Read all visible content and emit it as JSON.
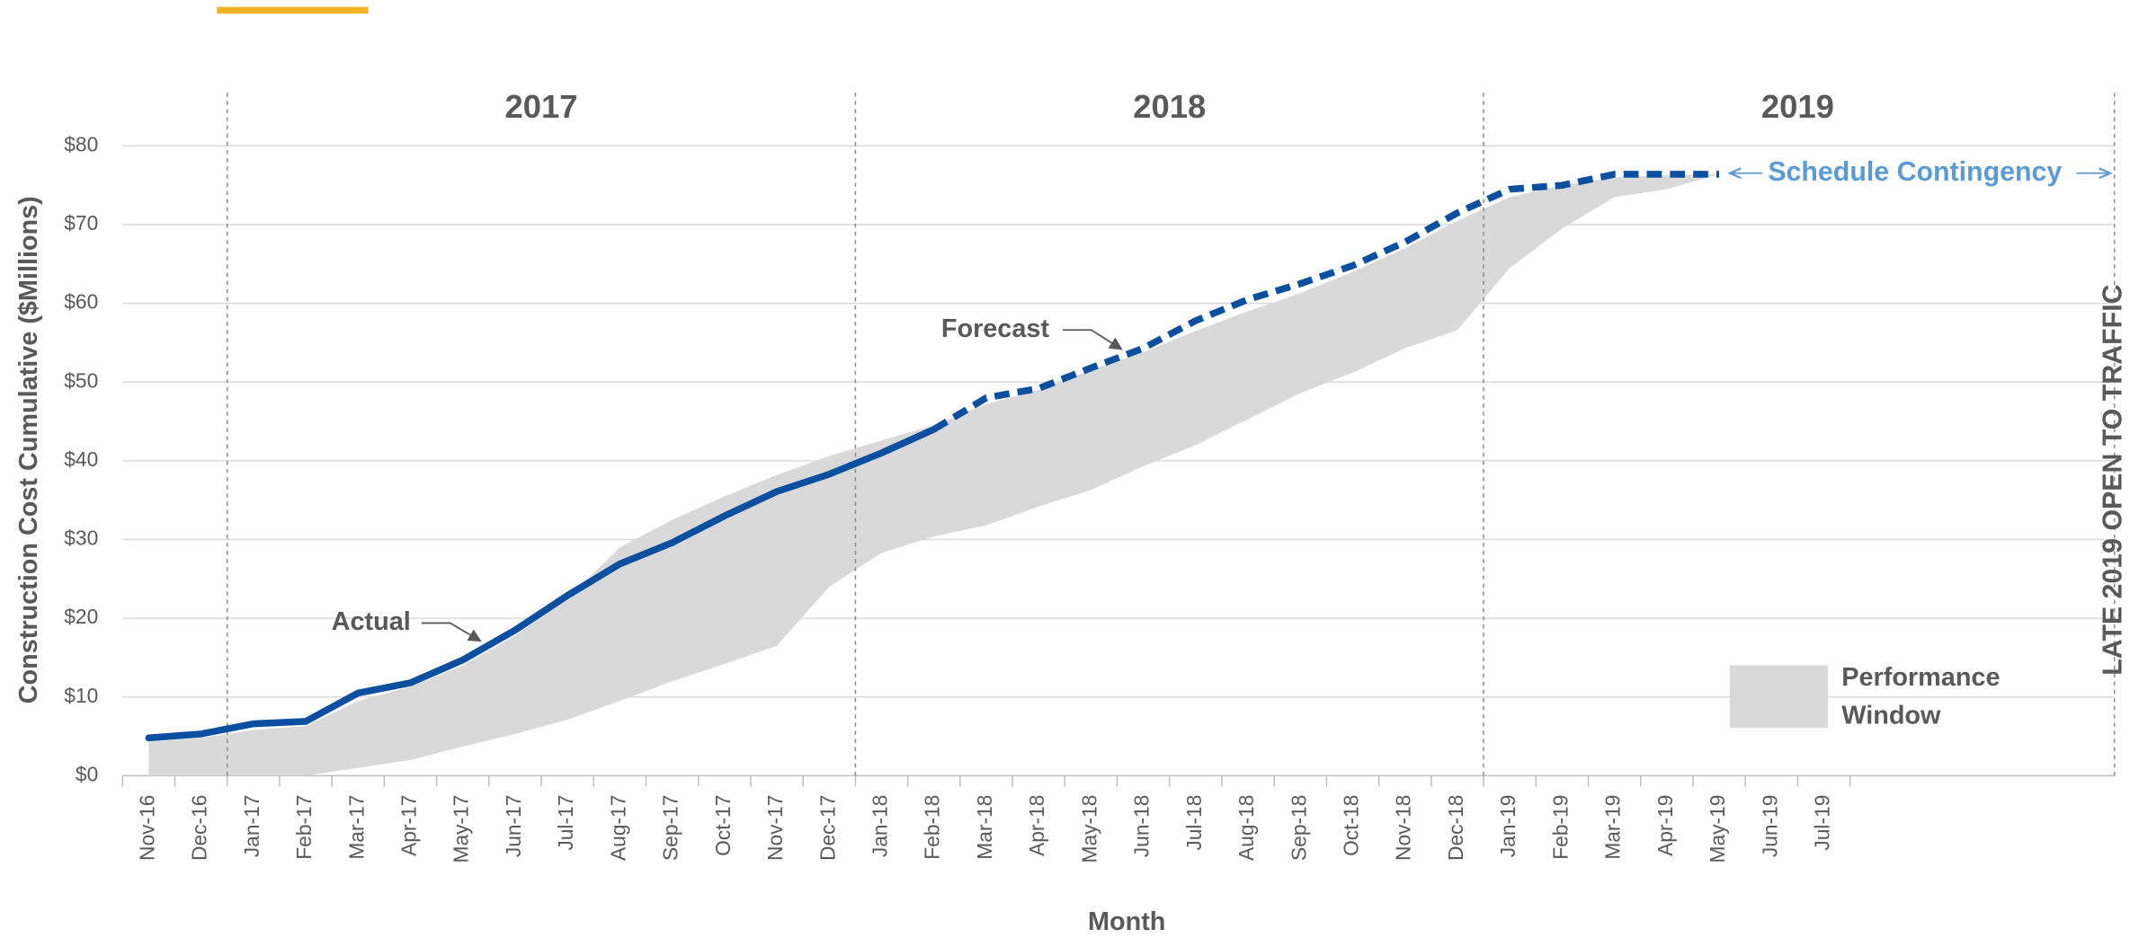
{
  "chart_data": {
    "type": "line",
    "categories": [
      "Nov-16",
      "Dec-16",
      "Jan-17",
      "Feb-17",
      "Mar-17",
      "Apr-17",
      "May-17",
      "Jun-17",
      "Jul-17",
      "Aug-17",
      "Sep-17",
      "Oct-17",
      "Nov-17",
      "Dec-17",
      "Jan-18",
      "Feb-18",
      "Mar-18",
      "Apr-18",
      "May-18",
      "Jun-18",
      "Jul-18",
      "Aug-18",
      "Sep-18",
      "Oct-18",
      "Nov-18",
      "Dec-18",
      "Jan-19",
      "Feb-19",
      "Mar-19",
      "Apr-19",
      "May-19",
      "Jun-19",
      "Jul-19"
    ],
    "series": [
      {
        "name": "Actual",
        "color": "#0b50a0",
        "values": [
          4.8,
          5.3,
          6.6,
          6.9,
          10.5,
          11.8,
          14.7,
          18.5,
          22.9,
          26.9,
          29.6,
          33.0,
          36.1,
          38.3,
          41.0,
          44.0,
          null,
          null,
          null,
          null,
          null,
          null,
          null,
          null,
          null,
          null,
          null,
          null,
          null,
          null,
          null,
          null,
          null
        ]
      },
      {
        "name": "Forecast",
        "color": "#0b50a0",
        "values": [
          null,
          null,
          null,
          null,
          null,
          null,
          null,
          null,
          null,
          null,
          null,
          null,
          null,
          null,
          null,
          44.0,
          48.0,
          49.2,
          51.8,
          54.3,
          57.8,
          60.5,
          62.5,
          64.8,
          67.8,
          71.5,
          74.5,
          75.0,
          76.4,
          76.4,
          76.4,
          null,
          null
        ]
      }
    ],
    "band": {
      "name": "Performance Window",
      "color": "#d9d9d9",
      "upper": [
        4.3,
        4.8,
        5.8,
        6.3,
        9.5,
        11.3,
        14.0,
        17.8,
        22.5,
        29.0,
        32.5,
        35.5,
        38.2,
        40.6,
        42.6,
        44.5,
        47.2,
        49.0,
        51.5,
        53.8,
        56.5,
        59.0,
        61.3,
        64.0,
        67.0,
        70.5,
        73.5,
        75.0,
        76.0,
        76.3,
        76.4,
        null,
        null
      ],
      "lower": [
        0,
        0,
        0,
        0,
        1.0,
        2.0,
        3.7,
        5.3,
        7.1,
        9.5,
        12.0,
        14.2,
        16.5,
        24.0,
        28.3,
        30.4,
        31.8,
        34.2,
        36.3,
        39.3,
        42.0,
        45.3,
        48.6,
        51.2,
        54.3,
        56.6,
        64.5,
        69.5,
        73.5,
        74.5,
        76.4,
        null,
        null
      ]
    },
    "ylim": [
      0,
      80
    ],
    "yticks": [
      {
        "value": 0,
        "label": "$0"
      },
      {
        "value": 10,
        "label": "$10"
      },
      {
        "value": 20,
        "label": "$20"
      },
      {
        "value": 30,
        "label": "$30"
      },
      {
        "value": 40,
        "label": "$40"
      },
      {
        "value": 50,
        "label": "$50"
      },
      {
        "value": 60,
        "label": "$60"
      },
      {
        "value": 70,
        "label": "$70"
      },
      {
        "value": 80,
        "label": "$80"
      }
    ],
    "grid": true,
    "x_label": "Month",
    "y_label": "Construction Cost Cumulative ($Millions)",
    "year_labels": [
      "2017",
      "2018",
      "2019"
    ],
    "annotations": {
      "contingency": "Schedule Contingency",
      "opening": "LATE 2019 OPEN TO TRAFFIC"
    }
  }
}
